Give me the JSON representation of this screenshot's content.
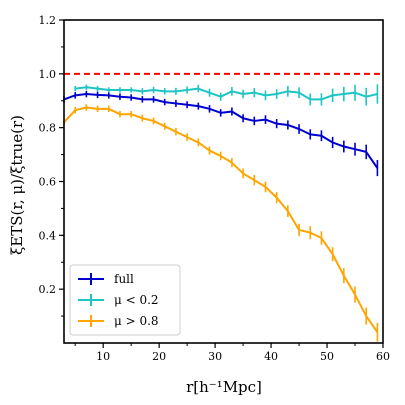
{
  "chart_data": {
    "type": "line",
    "xlabel": "r[h⁻¹Mpc]",
    "ylabel": "ξETS(r, μ)/ξtrue(r)",
    "xlim": [
      3,
      60
    ],
    "ylim": [
      0,
      1.2
    ],
    "xticks": [
      10,
      20,
      30,
      40,
      50,
      60
    ],
    "yticks": [
      0.2,
      0.4,
      0.6,
      0.8,
      1.0,
      1.2
    ],
    "ytick_labels": [
      "0.2",
      "0.4",
      "0.6",
      "0.8",
      "1.0",
      "1.2"
    ],
    "xtick_labels": [
      "10",
      "20",
      "30",
      "40",
      "50",
      "60"
    ],
    "grid": false,
    "legend_position": "bottom-left",
    "reference_line": {
      "y": 1.0,
      "color": "#ff0000",
      "style": "dashed"
    },
    "x": [
      3,
      5,
      7,
      9,
      11,
      13,
      15,
      17,
      19,
      21,
      23,
      25,
      27,
      29,
      31,
      33,
      35,
      37,
      39,
      41,
      43,
      45,
      47,
      49,
      51,
      53,
      55,
      57,
      59
    ],
    "series": [
      {
        "name": "full",
        "color": "#0000cc",
        "values": [
          0.905,
          0.92,
          0.925,
          0.922,
          0.92,
          0.915,
          0.912,
          0.905,
          0.905,
          0.895,
          0.89,
          0.885,
          0.88,
          0.87,
          0.855,
          0.86,
          0.835,
          0.825,
          0.83,
          0.815,
          0.81,
          0.795,
          0.775,
          0.77,
          0.745,
          0.73,
          0.72,
          0.71,
          0.65
        ],
        "errors": [
          0.012,
          0.012,
          0.012,
          0.012,
          0.012,
          0.012,
          0.012,
          0.012,
          0.012,
          0.012,
          0.013,
          0.013,
          0.013,
          0.014,
          0.014,
          0.015,
          0.015,
          0.016,
          0.016,
          0.017,
          0.017,
          0.018,
          0.019,
          0.02,
          0.021,
          0.022,
          0.024,
          0.027,
          0.03
        ]
      },
      {
        "name": "μ < 0.2",
        "color": "#1fc4c4",
        "values": [
          null,
          0.945,
          0.95,
          0.945,
          0.94,
          0.94,
          0.94,
          0.935,
          0.94,
          0.935,
          0.935,
          0.94,
          0.945,
          0.93,
          0.915,
          0.935,
          0.925,
          0.93,
          0.92,
          0.925,
          0.935,
          0.93,
          0.905,
          0.905,
          0.92,
          0.925,
          0.93,
          0.915,
          0.925
        ],
        "errors": [
          0,
          0.01,
          0.01,
          0.01,
          0.01,
          0.01,
          0.01,
          0.012,
          0.012,
          0.012,
          0.013,
          0.013,
          0.014,
          0.015,
          0.015,
          0.016,
          0.016,
          0.017,
          0.018,
          0.018,
          0.02,
          0.02,
          0.022,
          0.023,
          0.025,
          0.027,
          0.03,
          0.033,
          0.036
        ]
      },
      {
        "name": "μ > 0.8",
        "color": "#ffa500",
        "values": [
          0.82,
          0.865,
          0.875,
          0.87,
          0.87,
          0.85,
          0.85,
          0.835,
          0.825,
          0.805,
          0.785,
          0.765,
          0.745,
          0.715,
          0.695,
          0.67,
          0.63,
          0.605,
          0.58,
          0.54,
          0.49,
          0.42,
          0.41,
          0.39,
          0.33,
          0.25,
          0.18,
          0.1,
          0.04
        ],
        "errors": [
          0.012,
          0.012,
          0.012,
          0.012,
          0.012,
          0.012,
          0.012,
          0.013,
          0.013,
          0.013,
          0.014,
          0.014,
          0.015,
          0.015,
          0.016,
          0.017,
          0.018,
          0.019,
          0.02,
          0.021,
          0.022,
          0.023,
          0.024,
          0.025,
          0.026,
          0.028,
          0.03,
          0.032,
          0.035
        ]
      }
    ]
  }
}
